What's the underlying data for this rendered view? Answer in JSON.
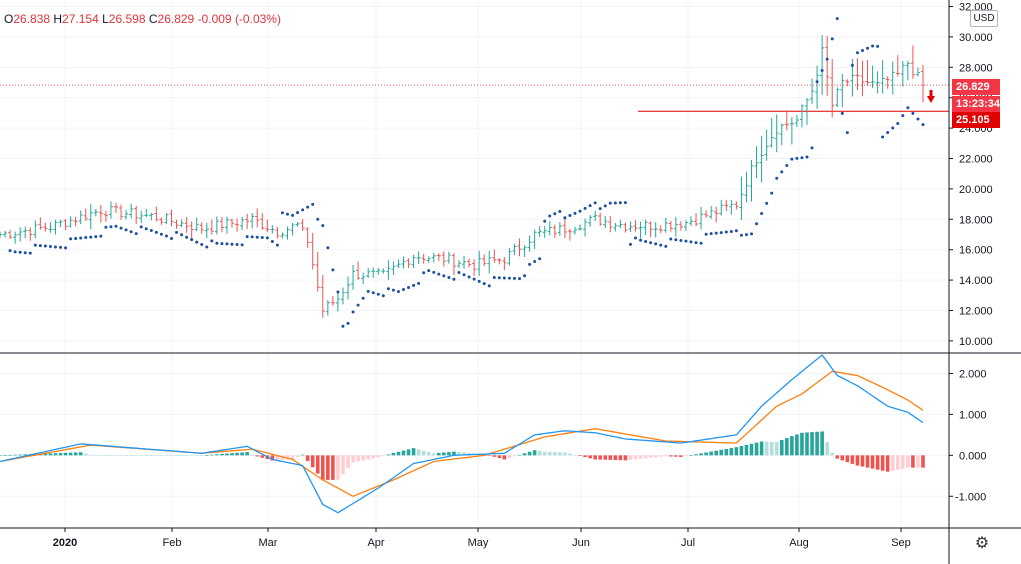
{
  "ohlc": {
    "open_label": "O",
    "open": "26.838",
    "high_label": "H",
    "high": "27.154",
    "low_label": "L",
    "low": "26.598",
    "close_label": "C",
    "close": "26.829",
    "change": "-0.009",
    "change_pct": "(-0.03%)"
  },
  "currency": "USD",
  "tags": {
    "last_price": "26.829",
    "countdown": "13:23:34",
    "line_level": "25.105"
  },
  "colors": {
    "up": "#26a69a",
    "down": "#ef5350",
    "sar": "#1e4f9c",
    "macd_line": "#2196f3",
    "signal_line": "#ff7f0e",
    "hist_up_strong": "#26a69a",
    "hist_up_weak": "#b2dfdb",
    "hist_down_strong": "#ef5350",
    "hist_down_weak": "#ffcdd2",
    "tag_red": "#f23645",
    "hline": "#e00000"
  },
  "chart_data": [
    {
      "type": "candlestick",
      "price_axis_ticks": [
        "10.000",
        "12.000",
        "14.000",
        "16.000",
        "18.000",
        "20.000",
        "22.000",
        "24.000",
        "26.000",
        "28.000",
        "30.000",
        "32.000"
      ],
      "ylim": [
        9.4,
        32.1
      ],
      "x_ticks": [
        "2020",
        "Feb",
        "Mar",
        "Apr",
        "May",
        "Jun",
        "Jul",
        "Aug",
        "Sep"
      ],
      "horizontal_line": 25.105,
      "last_price": 26.829,
      "keypoints": [
        {
          "i": 0,
          "p": 17.0
        },
        {
          "i": 10,
          "p": 17.5
        },
        {
          "i": 20,
          "p": 18.6
        },
        {
          "i": 30,
          "p": 18.2
        },
        {
          "i": 40,
          "p": 17.4
        },
        {
          "i": 50,
          "p": 18.0
        },
        {
          "i": 55,
          "p": 17.2
        },
        {
          "i": 59,
          "p": 17.6
        },
        {
          "i": 61,
          "p": 16.6
        },
        {
          "i": 64,
          "p": 12.0
        },
        {
          "i": 67,
          "p": 12.8
        },
        {
          "i": 70,
          "p": 14.4
        },
        {
          "i": 76,
          "p": 14.3
        },
        {
          "i": 82,
          "p": 15.6
        },
        {
          "i": 88,
          "p": 15.4
        },
        {
          "i": 94,
          "p": 15.0
        },
        {
          "i": 100,
          "p": 15.4
        },
        {
          "i": 106,
          "p": 17.0
        },
        {
          "i": 112,
          "p": 17.4
        },
        {
          "i": 118,
          "p": 18.0
        },
        {
          "i": 124,
          "p": 17.6
        },
        {
          "i": 130,
          "p": 17.6
        },
        {
          "i": 136,
          "p": 17.8
        },
        {
          "i": 142,
          "p": 18.5
        },
        {
          "i": 146,
          "p": 19.0
        },
        {
          "i": 150,
          "p": 22.0
        },
        {
          "i": 154,
          "p": 24.0
        },
        {
          "i": 158,
          "p": 24.5
        },
        {
          "i": 161,
          "p": 26.5
        },
        {
          "i": 163,
          "p": 29.0
        },
        {
          "i": 165,
          "p": 25.5
        },
        {
          "i": 167,
          "p": 27.0
        },
        {
          "i": 170,
          "p": 27.2
        },
        {
          "i": 174,
          "p": 26.8
        },
        {
          "i": 178,
          "p": 27.5
        },
        {
          "i": 180,
          "p": 28.3
        },
        {
          "i": 183,
          "p": 26.83
        }
      ]
    },
    {
      "type": "macd",
      "axis_ticks": [
        "2.000",
        "1.000",
        "0.000",
        "-1.000"
      ],
      "ylim": [
        -1.75,
        2.45
      ],
      "macd_keypoints": [
        {
          "i": 0,
          "v": -0.15
        },
        {
          "i": 16,
          "v": 0.28
        },
        {
          "i": 40,
          "v": 0.05
        },
        {
          "i": 49,
          "v": 0.22
        },
        {
          "i": 54,
          "v": -0.1
        },
        {
          "i": 60,
          "v": -0.25
        },
        {
          "i": 64,
          "v": -1.2
        },
        {
          "i": 67,
          "v": -1.4
        },
        {
          "i": 75,
          "v": -0.8
        },
        {
          "i": 82,
          "v": -0.2
        },
        {
          "i": 90,
          "v": 0.0
        },
        {
          "i": 100,
          "v": 0.05
        },
        {
          "i": 106,
          "v": 0.5
        },
        {
          "i": 112,
          "v": 0.6
        },
        {
          "i": 118,
          "v": 0.55
        },
        {
          "i": 124,
          "v": 0.4
        },
        {
          "i": 135,
          "v": 0.3
        },
        {
          "i": 146,
          "v": 0.5
        },
        {
          "i": 151,
          "v": 1.2
        },
        {
          "i": 157,
          "v": 1.85
        },
        {
          "i": 163,
          "v": 2.45
        },
        {
          "i": 166,
          "v": 1.95
        },
        {
          "i": 170,
          "v": 1.7
        },
        {
          "i": 176,
          "v": 1.2
        },
        {
          "i": 180,
          "v": 1.05
        },
        {
          "i": 183,
          "v": 0.8
        }
      ],
      "signal_keypoints": [
        {
          "i": 0,
          "v": -0.15
        },
        {
          "i": 18,
          "v": 0.25
        },
        {
          "i": 40,
          "v": 0.05
        },
        {
          "i": 50,
          "v": 0.15
        },
        {
          "i": 58,
          "v": -0.1
        },
        {
          "i": 64,
          "v": -0.6
        },
        {
          "i": 70,
          "v": -1.0
        },
        {
          "i": 78,
          "v": -0.6
        },
        {
          "i": 86,
          "v": -0.15
        },
        {
          "i": 96,
          "v": 0.0
        },
        {
          "i": 108,
          "v": 0.45
        },
        {
          "i": 118,
          "v": 0.65
        },
        {
          "i": 132,
          "v": 0.35
        },
        {
          "i": 146,
          "v": 0.3
        },
        {
          "i": 154,
          "v": 1.2
        },
        {
          "i": 159,
          "v": 1.5
        },
        {
          "i": 165,
          "v": 2.05
        },
        {
          "i": 170,
          "v": 1.95
        },
        {
          "i": 176,
          "v": 1.6
        },
        {
          "i": 180,
          "v": 1.35
        },
        {
          "i": 183,
          "v": 1.1
        }
      ]
    }
  ]
}
